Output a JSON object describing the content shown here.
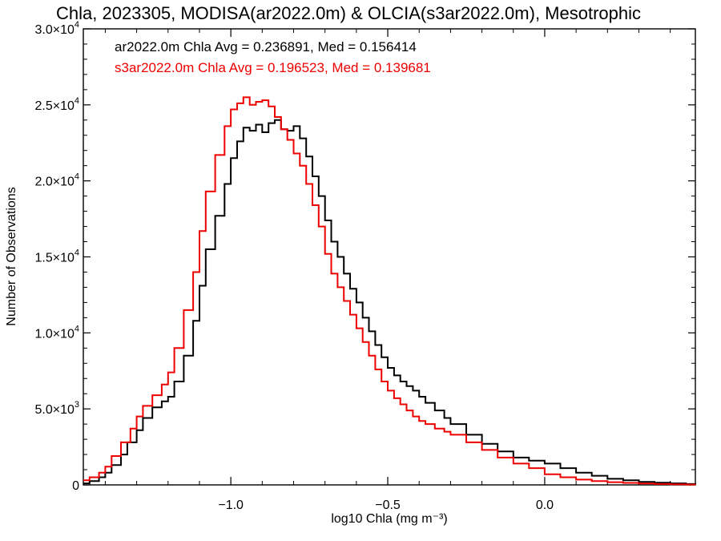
{
  "chart_data": {
    "type": "line",
    "title": "Chla, 2023305, MODISA(ar2022.0m) & OLCIA(s3ar2022.0m), Mesotrophic",
    "xlabel": "log10 Chla (mg m⁻³)",
    "ylabel": "Number of Observations",
    "xlim": [
      -1.47,
      0.48
    ],
    "ylim": [
      0,
      30000
    ],
    "grid": false,
    "x_ticks": [
      -1.0,
      -0.5,
      0.0
    ],
    "x_tick_labels": [
      "−1.0",
      "−0.5",
      "0.0"
    ],
    "y_ticks": [
      0,
      5000,
      10000,
      15000,
      20000,
      25000,
      30000
    ],
    "y_tick_labels": [
      {
        "mant": "0",
        "exp": ""
      },
      {
        "mant": "5.0×10",
        "exp": "3"
      },
      {
        "mant": "1.0×10",
        "exp": "4"
      },
      {
        "mant": "1.5×10",
        "exp": "4"
      },
      {
        "mant": "2.0×10",
        "exp": "4"
      },
      {
        "mant": "2.5×10",
        "exp": "4"
      },
      {
        "mant": "3.0×10",
        "exp": "4"
      }
    ],
    "annotations": [
      {
        "text": "ar2022.0m Chla Avg = 0.236891, Med = 0.156414",
        "color": "#000000"
      },
      {
        "text": "s3ar2022.0m Chla Avg = 0.196523, Med = 0.139681",
        "color": "#ee0000"
      }
    ],
    "series": [
      {
        "color": "#000000",
        "x": [
          -1.47,
          -1.45,
          -1.42,
          -1.4,
          -1.38,
          -1.35,
          -1.33,
          -1.3,
          -1.28,
          -1.25,
          -1.22,
          -1.2,
          -1.18,
          -1.15,
          -1.12,
          -1.1,
          -1.08,
          -1.05,
          -1.02,
          -1.0,
          -0.98,
          -0.96,
          -0.94,
          -0.92,
          -0.9,
          -0.88,
          -0.86,
          -0.84,
          -0.82,
          -0.8,
          -0.78,
          -0.76,
          -0.74,
          -0.72,
          -0.7,
          -0.68,
          -0.66,
          -0.64,
          -0.62,
          -0.6,
          -0.58,
          -0.56,
          -0.54,
          -0.52,
          -0.5,
          -0.48,
          -0.46,
          -0.44,
          -0.42,
          -0.4,
          -0.38,
          -0.35,
          -0.32,
          -0.3,
          -0.25,
          -0.2,
          -0.15,
          -0.1,
          -0.05,
          0.0,
          0.05,
          0.1,
          0.15,
          0.2,
          0.25,
          0.3,
          0.35,
          0.4,
          0.45,
          0.48
        ],
        "y": [
          100,
          250,
          500,
          800,
          1300,
          2000,
          2800,
          3600,
          4400,
          5100,
          5500,
          5800,
          6800,
          8500,
          10800,
          13100,
          15500,
          17700,
          19800,
          21500,
          22600,
          23500,
          23300,
          23700,
          23200,
          23800,
          24000,
          23400,
          23300,
          23600,
          22800,
          21600,
          20300,
          19000,
          17400,
          16000,
          15000,
          13900,
          12900,
          12000,
          11000,
          10100,
          9200,
          8400,
          7700,
          7200,
          6800,
          6500,
          6200,
          5800,
          5400,
          4900,
          4400,
          4000,
          3300,
          2700,
          2200,
          1800,
          1600,
          1400,
          1100,
          800,
          600,
          400,
          300,
          200,
          150,
          100,
          60,
          40
        ]
      },
      {
        "color": "#ee0000",
        "x": [
          -1.47,
          -1.45,
          -1.42,
          -1.4,
          -1.38,
          -1.35,
          -1.32,
          -1.3,
          -1.28,
          -1.25,
          -1.22,
          -1.2,
          -1.18,
          -1.15,
          -1.12,
          -1.1,
          -1.08,
          -1.05,
          -1.02,
          -1.0,
          -0.98,
          -0.96,
          -0.94,
          -0.92,
          -0.9,
          -0.88,
          -0.86,
          -0.84,
          -0.82,
          -0.8,
          -0.78,
          -0.76,
          -0.74,
          -0.72,
          -0.7,
          -0.68,
          -0.66,
          -0.64,
          -0.62,
          -0.6,
          -0.58,
          -0.56,
          -0.54,
          -0.52,
          -0.5,
          -0.48,
          -0.46,
          -0.44,
          -0.42,
          -0.4,
          -0.38,
          -0.35,
          -0.32,
          -0.3,
          -0.25,
          -0.2,
          -0.15,
          -0.1,
          -0.05,
          0.0,
          0.05,
          0.1,
          0.15,
          0.2,
          0.25,
          0.3,
          0.35,
          0.4,
          0.45,
          0.48
        ],
        "y": [
          300,
          500,
          800,
          1200,
          1900,
          2800,
          3700,
          4500,
          5200,
          5900,
          6600,
          7400,
          9000,
          11500,
          14000,
          16700,
          19300,
          21700,
          23600,
          24700,
          25100,
          25500,
          25000,
          25200,
          25300,
          24900,
          24200,
          23400,
          22700,
          21800,
          21000,
          19800,
          18400,
          17000,
          15200,
          13900,
          13000,
          12100,
          11200,
          10300,
          9400,
          8500,
          7600,
          6800,
          6200,
          5700,
          5300,
          4900,
          4500,
          4200,
          4000,
          3700,
          3500,
          3300,
          2800,
          2300,
          1800,
          1400,
          1100,
          700,
          500,
          350,
          250,
          180,
          130,
          90,
          60,
          40,
          20,
          10
        ]
      }
    ]
  }
}
